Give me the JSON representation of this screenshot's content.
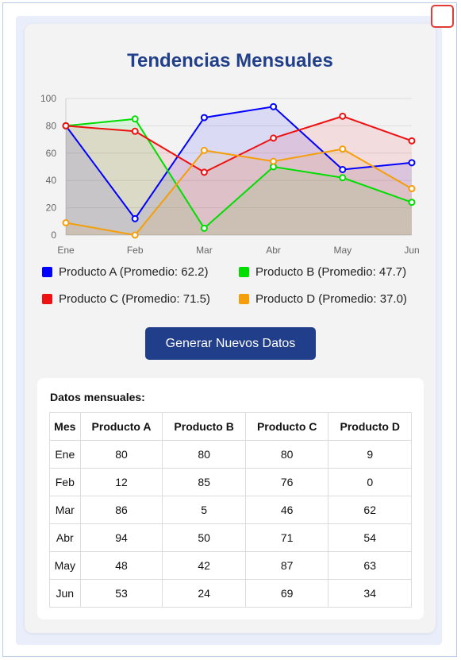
{
  "title": "Tendencias Mensuales",
  "chart_data": {
    "type": "line",
    "categories": [
      "Ene",
      "Feb",
      "Mar",
      "Abr",
      "May",
      "Jun"
    ],
    "ylim": [
      0,
      100
    ],
    "yticks": [
      0,
      20,
      40,
      60,
      80,
      100
    ],
    "grid": true,
    "filled": true,
    "series": [
      {
        "name": "Producto A",
        "color": "#0000ff",
        "values": [
          80,
          12,
          86,
          94,
          48,
          53
        ]
      },
      {
        "name": "Producto B",
        "color": "#00dd00",
        "values": [
          80,
          85,
          5,
          50,
          42,
          24
        ]
      },
      {
        "name": "Producto C",
        "color": "#ee1111",
        "values": [
          80,
          76,
          46,
          71,
          87,
          69
        ]
      },
      {
        "name": "Producto D",
        "color": "#f59e0b",
        "values": [
          9,
          0,
          62,
          54,
          63,
          34
        ]
      }
    ]
  },
  "legend": [
    {
      "label": "Producto A (Promedio: 62.2)",
      "color": "#0000ff"
    },
    {
      "label": "Producto B (Promedio: 47.7)",
      "color": "#00dd00"
    },
    {
      "label": "Producto C (Promedio: 71.5)",
      "color": "#ee1111"
    },
    {
      "label": "Producto D (Promedio: 37.0)",
      "color": "#f59e0b"
    }
  ],
  "button_label": "Generar Nuevos Datos",
  "table": {
    "title": "Datos mensuales:",
    "headers": [
      "Mes",
      "Producto A",
      "Producto B",
      "Producto C",
      "Producto D"
    ],
    "rows": [
      [
        "Ene",
        "80",
        "80",
        "80",
        "9"
      ],
      [
        "Feb",
        "12",
        "85",
        "76",
        "0"
      ],
      [
        "Mar",
        "86",
        "5",
        "46",
        "62"
      ],
      [
        "Abr",
        "94",
        "50",
        "71",
        "54"
      ],
      [
        "May",
        "48",
        "42",
        "87",
        "63"
      ],
      [
        "Jun",
        "53",
        "24",
        "69",
        "34"
      ]
    ]
  }
}
